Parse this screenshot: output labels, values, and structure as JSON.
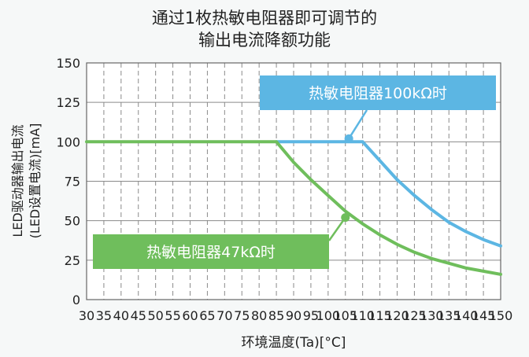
{
  "chart_data": {
    "type": "line",
    "title_lines": [
      "通过1枚热敏电阻器即可调节的",
      "输出电流降额功能"
    ],
    "xlabel": "环境温度(Ta)[°C]",
    "ylabel_lines": [
      "LED驱动器输出电流",
      "(LED设置电流)[mA]"
    ],
    "xlim": [
      30,
      150
    ],
    "ylim": [
      0,
      150
    ],
    "x_ticks": [
      30,
      35,
      40,
      45,
      50,
      55,
      60,
      65,
      70,
      75,
      80,
      85,
      90,
      95,
      100,
      105,
      110,
      115,
      120,
      125,
      130,
      135,
      140,
      145,
      150
    ],
    "y_ticks": [
      0,
      25,
      50,
      75,
      100,
      125,
      150
    ],
    "x_tick_labels": [
      "30",
      "35",
      "40",
      "45",
      "50",
      "55",
      "60",
      "65",
      "70",
      "75",
      "80",
      "85",
      "90",
      "95",
      "100",
      "105",
      "110",
      "115",
      "120",
      "125",
      "130",
      "135",
      "140",
      "145",
      "150"
    ],
    "y_tick_labels": [
      "0",
      "25",
      "50",
      "75",
      "100",
      "125",
      "150"
    ],
    "grid": true,
    "series": [
      {
        "name": "热敏电阻器47kΩ时",
        "color": "#6fbe5c",
        "points": [
          [
            30,
            100
          ],
          [
            85,
            100
          ],
          [
            90,
            87
          ],
          [
            95,
            76
          ],
          [
            100,
            66
          ],
          [
            105,
            56
          ],
          [
            110,
            48
          ],
          [
            115,
            41
          ],
          [
            120,
            35
          ],
          [
            125,
            30
          ],
          [
            130,
            26
          ],
          [
            135,
            23
          ],
          [
            140,
            20
          ],
          [
            145,
            18
          ],
          [
            150,
            16
          ]
        ]
      },
      {
        "name": "热敏电阻器100kΩ时",
        "color": "#5cb6e3",
        "points": [
          [
            85,
            100
          ],
          [
            110,
            100
          ],
          [
            115,
            88
          ],
          [
            120,
            76
          ],
          [
            125,
            66
          ],
          [
            130,
            57
          ],
          [
            135,
            49
          ],
          [
            140,
            43
          ],
          [
            145,
            38
          ],
          [
            150,
            34
          ]
        ]
      }
    ],
    "annotations": [
      {
        "series_index": 1,
        "label": "热敏电阻器100kΩ时",
        "marker": [
          106,
          102
        ]
      },
      {
        "series_index": 0,
        "label": "热敏电阻器47kΩ时",
        "marker": [
          105,
          52
        ]
      }
    ]
  }
}
